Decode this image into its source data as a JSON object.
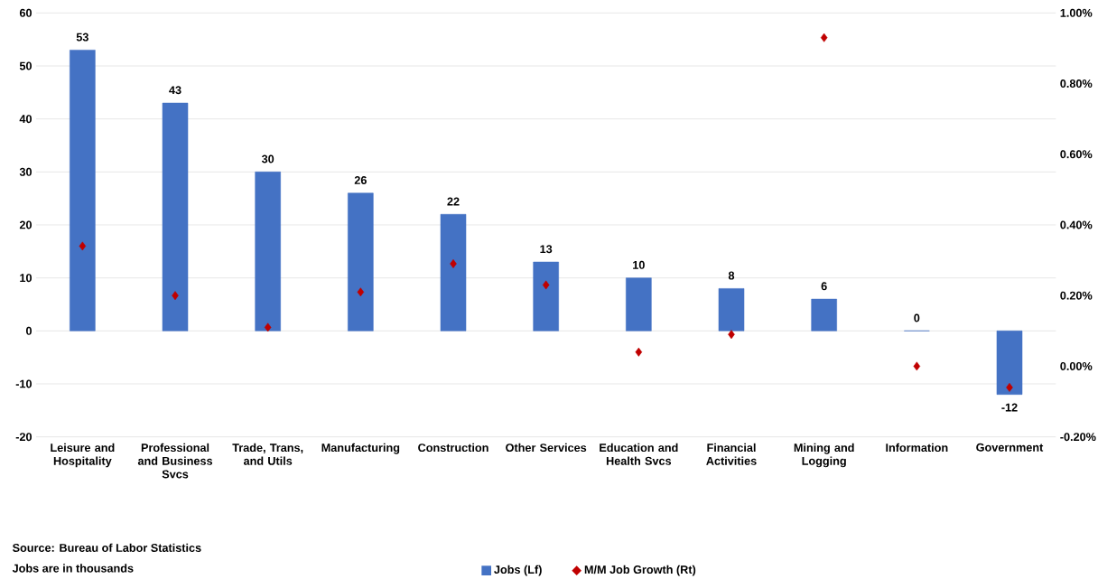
{
  "chart_data": {
    "type": "bar",
    "categories": [
      "Leisure and Hospitality",
      "Professional and Business Svcs",
      "Trade, Trans, and Utils",
      "Manufacturing",
      "Construction",
      "Other Services",
      "Education and Health Svcs",
      "Financial Activities",
      "Mining and Logging",
      "Information",
      "Government"
    ],
    "series": [
      {
        "name": "Jobs (Lf)",
        "color": "#4472c4",
        "values": [
          53,
          43,
          30,
          26,
          22,
          13,
          10,
          8,
          6,
          0,
          -12
        ],
        "value_labels": [
          "53",
          "43",
          "30",
          "26",
          "22",
          "13",
          "10",
          "8",
          "6",
          "0",
          "-12"
        ]
      },
      {
        "name": "M/M Job Growth (Rt)",
        "type": "scatter",
        "axis": "y2",
        "color": "#c00000",
        "values": [
          0.34,
          0.2,
          0.11,
          0.21,
          0.29,
          0.23,
          0.04,
          0.09,
          0.93,
          0.0,
          -0.06
        ]
      }
    ],
    "marker": "diamond",
    "ylim": [
      -20,
      60
    ],
    "yticks": [
      -20,
      -10,
      0,
      10,
      20,
      30,
      40,
      50,
      60
    ],
    "y2lim": [
      -0.2,
      1.0
    ],
    "y2ticks": [
      {
        "value": -0.2,
        "label": "-0.20%"
      },
      {
        "value": 0.0,
        "label": "0.00%"
      },
      {
        "value": 0.2,
        "label": "0.20%"
      },
      {
        "value": 0.4,
        "label": "0.40%"
      },
      {
        "value": 0.6,
        "label": "0.60%"
      },
      {
        "value": 0.8,
        "label": "0.80%"
      },
      {
        "value": 1.0,
        "label": "1.00%"
      }
    ],
    "grid": "y",
    "legend": "bottom",
    "annotations": [
      "Source: Bureau of Labor Statistics",
      "Jobs are in thousands"
    ]
  }
}
